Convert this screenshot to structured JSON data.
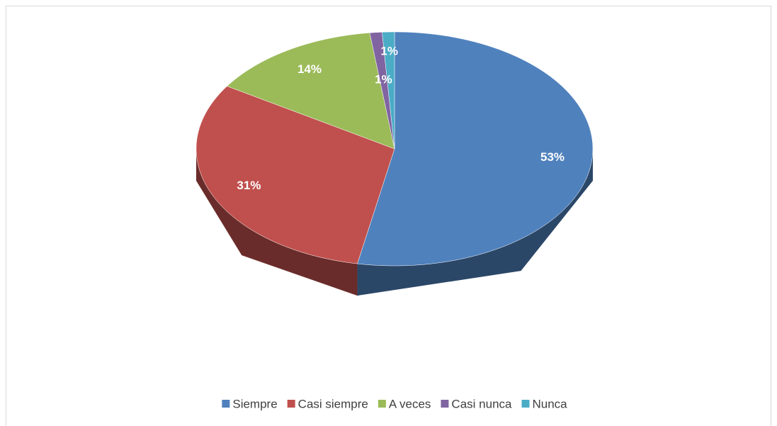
{
  "chart_data": {
    "type": "pie3d",
    "categories": [
      "Siempre",
      "Casi siempre",
      "A veces",
      "Casi nunca",
      "Nunca"
    ],
    "values": [
      53,
      31,
      14,
      1,
      1
    ],
    "value_labels": [
      "53%",
      "31%",
      "14%",
      "1%",
      "1%"
    ],
    "colors": [
      "#4f81bd",
      "#c0504d",
      "#9bbb59",
      "#8064a2",
      "#4bacc6"
    ],
    "legend": "bottom"
  }
}
